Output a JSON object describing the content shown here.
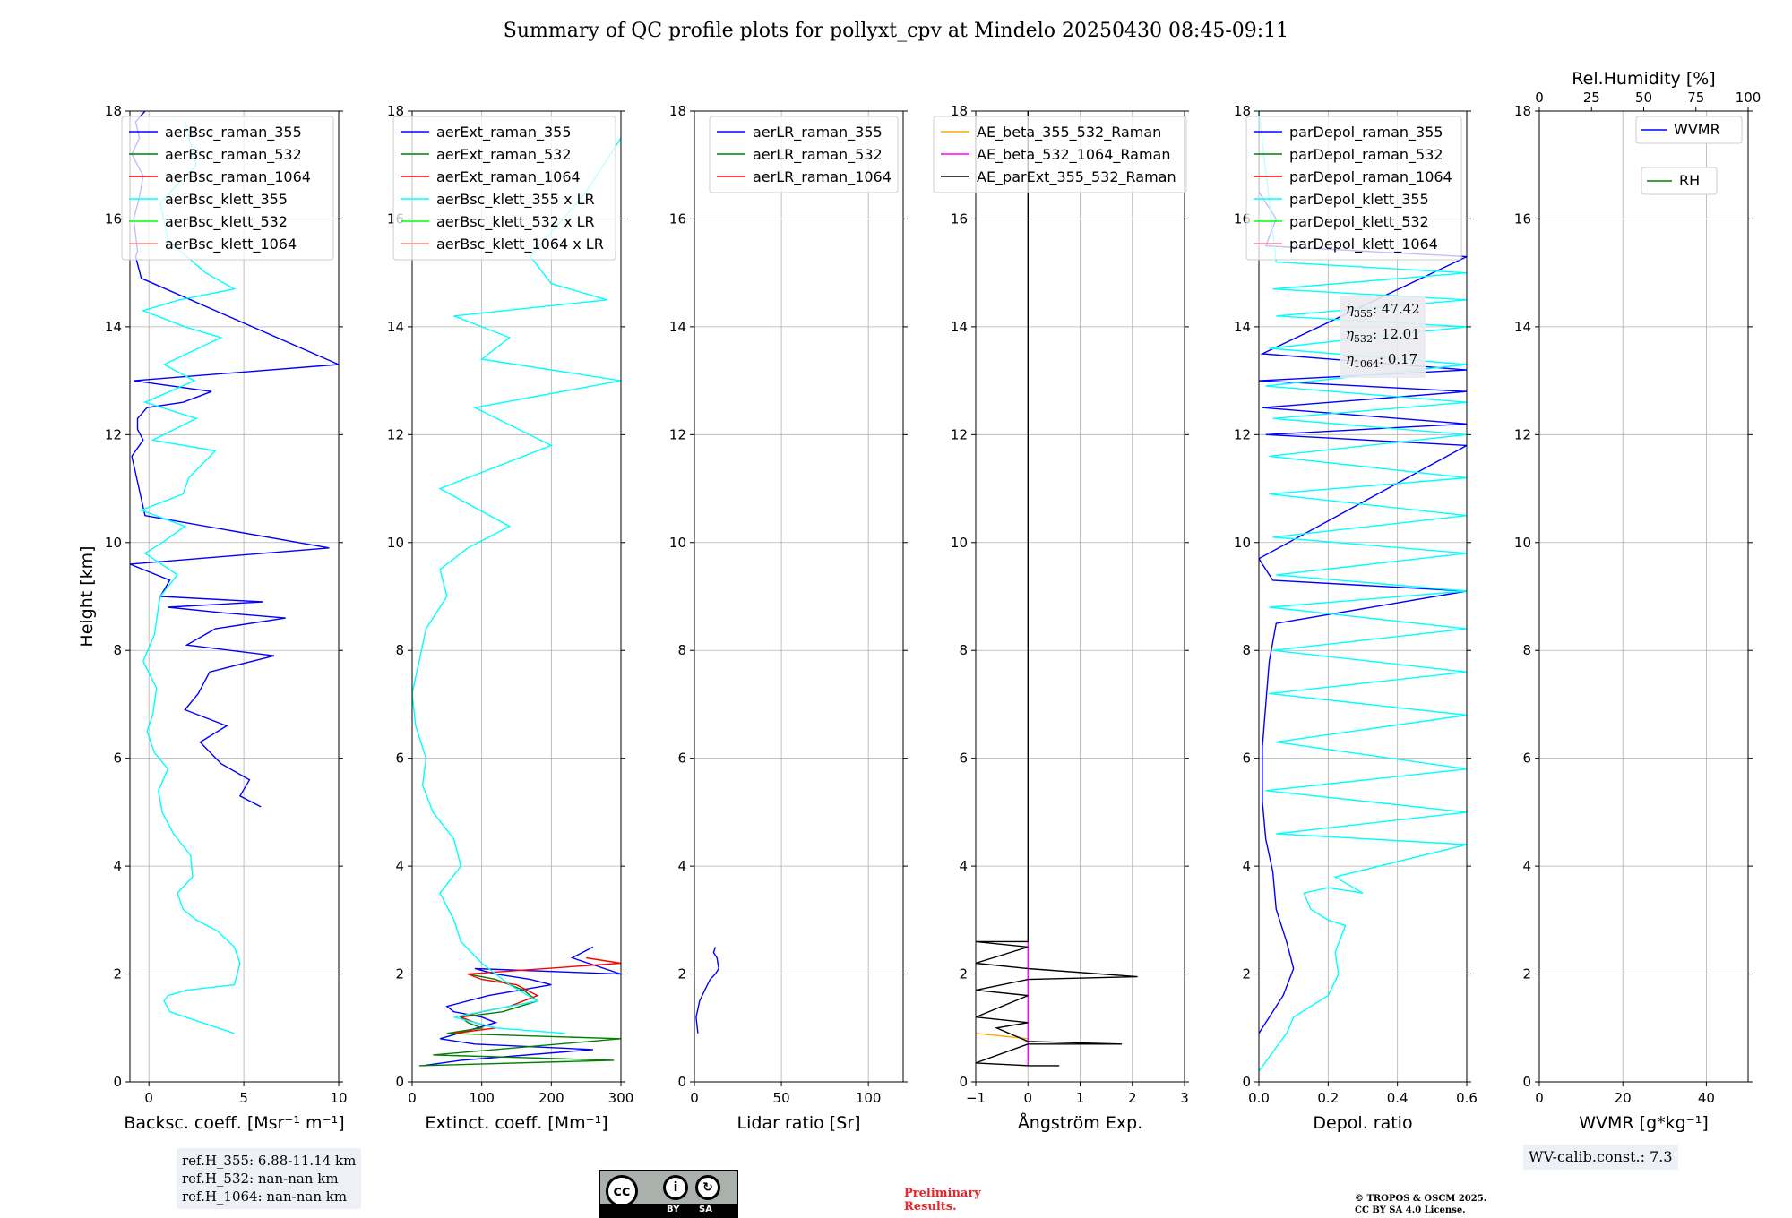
{
  "title": "Summary of QC profile plots for pollyxt_cpv at Mindelo 20250430 08:45-09:11",
  "info_left": [
    "ref.H_355: 6.88-11.14 km",
    "ref.H_532: nan-nan km",
    "ref.H_1064: nan-nan km"
  ],
  "eta_box": [
    "η355: 47.42",
    "η532: 12.01",
    "η1064: 0.17"
  ],
  "wv_calib": "WV-calib.const.: 7.3",
  "preliminary": "Preliminary\nResults.",
  "copyright": "© TROPOS & OSCM 2025.\nCC BY SA 4.0 License.",
  "license_badge": [
    "BY",
    "SA"
  ],
  "chart_data": [
    {
      "type": "line",
      "xlabel": "Backsc. coeff. [Msr⁻¹ m⁻¹]",
      "ylabel": "Height [km]",
      "xlim": [
        -1,
        10
      ],
      "ylim": [
        0,
        18
      ],
      "xticks": [
        "0",
        "5",
        "10"
      ],
      "yticks": [
        "0",
        "2",
        "4",
        "6",
        "8",
        "10",
        "12",
        "14",
        "16",
        "18"
      ],
      "grid": true,
      "legend": "top-right",
      "series": [
        {
          "name": "aerBsc_raman_355",
          "color": "#0000ff",
          "x": [
            5.9,
            4.8,
            5.3,
            3.8,
            2.7,
            4.1,
            1.9,
            2.6,
            3.2,
            6.6,
            2.0,
            3.5,
            7.2,
            3.8,
            1.0,
            6.0,
            0.6,
            1.1,
            -1.0,
            9.5,
            -0.2,
            -0.9,
            -0.3,
            -0.6,
            -0.6,
            -0.1,
            1.8,
            3.3,
            -0.8,
            10.0,
            -0.4,
            -0.7,
            -0.6,
            -0.8,
            -0.5,
            -0.3,
            -0.9,
            -0.5,
            -0.7,
            -0.2
          ],
          "y": [
            5.1,
            5.3,
            5.6,
            5.9,
            6.3,
            6.6,
            6.9,
            7.2,
            7.6,
            7.9,
            8.1,
            8.4,
            8.6,
            8.7,
            8.8,
            8.9,
            9.0,
            9.3,
            9.6,
            9.9,
            10.5,
            11.6,
            11.9,
            12.1,
            12.3,
            12.5,
            12.6,
            12.8,
            13.0,
            13.3,
            14.9,
            15.3,
            15.4,
            16.0,
            16.4,
            16.8,
            17.2,
            17.5,
            17.8,
            18.0
          ]
        },
        {
          "name": "aerBsc_raman_532",
          "color": "#008000",
          "x": [],
          "y": []
        },
        {
          "name": "aerBsc_raman_1064",
          "color": "#ff0000",
          "x": [],
          "y": []
        },
        {
          "name": "aerBsc_klett_355",
          "color": "#00ffff",
          "x": [
            4.5,
            2.8,
            1.1,
            0.8,
            1.0,
            2.0,
            4.5,
            4.8,
            4.5,
            3.6,
            2.5,
            1.8,
            1.5,
            2.3,
            2.2,
            1.3,
            0.7,
            0.5,
            1.0,
            0.3,
            -0.1,
            0.2,
            0.4,
            -0.3,
            0.3,
            0.5,
            0.6,
            1.5,
            -0.2,
            0.7,
            1.9,
            -0.4,
            1.8,
            2.1,
            3.5,
            0.2,
            2.5,
            -0.2,
            2.4,
            0.8,
            3.8,
            1.9,
            -0.3,
            1.6,
            4.5,
            3.0,
            1.0,
            0.6,
            2.5,
            1.9
          ],
          "y": [
            0.9,
            1.1,
            1.3,
            1.5,
            1.6,
            1.7,
            1.8,
            2.2,
            2.5,
            2.8,
            3.0,
            3.2,
            3.5,
            3.8,
            4.2,
            4.6,
            5.0,
            5.4,
            5.8,
            6.1,
            6.5,
            6.8,
            7.3,
            7.8,
            8.3,
            8.8,
            9.0,
            9.4,
            9.8,
            10.0,
            10.3,
            10.6,
            10.9,
            11.2,
            11.7,
            11.9,
            12.3,
            12.6,
            13.0,
            13.3,
            13.8,
            14.0,
            14.3,
            14.5,
            14.7,
            15.0,
            15.6,
            16.3,
            17.0,
            17.8
          ]
        },
        {
          "name": "aerBsc_klett_532",
          "color": "#00ff00",
          "x": [],
          "y": []
        },
        {
          "name": "aerBsc_klett_1064",
          "color": "#ff8080",
          "x": [],
          "y": []
        }
      ]
    },
    {
      "type": "line",
      "xlabel": "Extinct. coeff. [Mm⁻¹]",
      "ylabel": "",
      "xlim": [
        0,
        300
      ],
      "ylim": [
        0,
        18
      ],
      "xticks": [
        "0",
        "100",
        "200",
        "300"
      ],
      "yticks": [
        "0",
        "2",
        "4",
        "6",
        "8",
        "10",
        "12",
        "14",
        "16",
        "18"
      ],
      "grid": true,
      "legend": "top-right",
      "series": [
        {
          "name": "aerExt_raman_355",
          "color": "#0000ff",
          "x": [
            15,
            70,
            260,
            90,
            40,
            80,
            120,
            100,
            60,
            50,
            110,
            200,
            170,
            120,
            90,
            300,
            230,
            260
          ],
          "y": [
            0.3,
            0.4,
            0.6,
            0.7,
            0.8,
            0.95,
            1.1,
            1.2,
            1.3,
            1.4,
            1.6,
            1.8,
            1.9,
            2.0,
            2.1,
            2.0,
            2.3,
            2.5
          ]
        },
        {
          "name": "aerExt_raman_532",
          "color": "#008000",
          "x": [
            10,
            290,
            30,
            300,
            50,
            100,
            80,
            70,
            130,
            180,
            160,
            120,
            80
          ],
          "y": [
            0.3,
            0.4,
            0.5,
            0.8,
            0.9,
            1.0,
            1.1,
            1.2,
            1.3,
            1.5,
            1.7,
            1.9,
            2.0
          ]
        },
        {
          "name": "aerExt_raman_1064",
          "color": "#ff0000",
          "x": [
            60,
            120,
            90,
            70,
            100,
            140,
            180,
            150,
            100,
            80,
            300,
            250
          ],
          "y": [
            0.9,
            1.0,
            1.1,
            1.2,
            1.3,
            1.4,
            1.6,
            1.8,
            1.9,
            2.0,
            2.2,
            2.3
          ]
        },
        {
          "name": "aerBsc_klett_355 x LR",
          "color": "#00ffff",
          "x": [
            220,
            120,
            60,
            180,
            140,
            100,
            70,
            60,
            40,
            70,
            60,
            30,
            15,
            20,
            5,
            0,
            10,
            20,
            50,
            40,
            80,
            140,
            40,
            200,
            90,
            300,
            100,
            140,
            60,
            280,
            200,
            170,
            250,
            300
          ],
          "y": [
            0.9,
            1.0,
            1.2,
            1.5,
            1.8,
            2.2,
            2.6,
            3.0,
            3.5,
            4.0,
            4.5,
            5.0,
            5.5,
            6.0,
            6.6,
            7.2,
            7.8,
            8.4,
            9.0,
            9.5,
            9.9,
            10.3,
            11.0,
            11.8,
            12.5,
            13.0,
            13.4,
            13.8,
            14.2,
            14.5,
            14.8,
            15.3,
            16.5,
            17.5
          ]
        },
        {
          "name": "aerBsc_klett_532 x LR",
          "color": "#00ff00",
          "x": [],
          "y": []
        },
        {
          "name": "aerBsc_klett_1064 x LR",
          "color": "#ff8080",
          "x": [],
          "y": []
        }
      ]
    },
    {
      "type": "line",
      "xlabel": "Lidar ratio [Sr]",
      "ylabel": "",
      "xlim": [
        0,
        120
      ],
      "ylim": [
        0,
        18
      ],
      "xticks": [
        "0",
        "50",
        "100"
      ],
      "yticks": [
        "0",
        "2",
        "4",
        "6",
        "8",
        "10",
        "12",
        "14",
        "16",
        "18"
      ],
      "grid": true,
      "legend": "top-right",
      "series": [
        {
          "name": "aerLR_raman_355",
          "color": "#0000ff",
          "x": [
            2,
            1,
            3,
            6,
            9,
            12,
            14,
            13,
            11,
            12
          ],
          "y": [
            0.9,
            1.2,
            1.5,
            1.7,
            1.9,
            2.0,
            2.1,
            2.3,
            2.4,
            2.5
          ]
        },
        {
          "name": "aerLR_raman_532",
          "color": "#008000",
          "x": [],
          "y": []
        },
        {
          "name": "aerLR_raman_1064",
          "color": "#ff0000",
          "x": [],
          "y": []
        }
      ]
    },
    {
      "type": "line",
      "xlabel": "Ångström Exp.",
      "ylabel": "",
      "xlim": [
        -1,
        3
      ],
      "ylim": [
        0,
        18
      ],
      "xticks": [
        "−1",
        "0",
        "1",
        "2",
        "3"
      ],
      "yticks": [
        "0",
        "2",
        "4",
        "6",
        "8",
        "10",
        "12",
        "14",
        "16",
        "18"
      ],
      "grid": true,
      "legend": "top-right",
      "series": [
        {
          "name": "AE_beta_355_532_Raman",
          "color": "#ffa500",
          "x": [
            -1.0,
            0.0
          ],
          "y": [
            0.9,
            0.8
          ]
        },
        {
          "name": "AE_beta_532_1064_Raman",
          "color": "#ff00ff",
          "x": [
            0.0,
            0.0
          ],
          "y": [
            0.3,
            2.6
          ]
        },
        {
          "name": "AE_parExt_355_532_Raman",
          "color": "#000000",
          "x": [
            0.6,
            0.0,
            -1.0,
            0.0,
            1.8,
            0.0,
            -0.6,
            0.0,
            -1.0,
            0.0,
            -1.0,
            0.0,
            2.1,
            0.0,
            -1.0,
            0.0,
            -1.0,
            0.0,
            0.0
          ],
          "y": [
            0.3,
            0.3,
            0.35,
            0.7,
            0.7,
            0.75,
            1.0,
            1.1,
            1.2,
            1.6,
            1.7,
            1.9,
            1.95,
            2.1,
            2.2,
            2.5,
            2.6,
            2.6,
            18.0
          ]
        }
      ]
    },
    {
      "type": "line",
      "xlabel": "Depol. ratio",
      "ylabel": "",
      "xlim": [
        0,
        0.6
      ],
      "ylim": [
        0,
        18
      ],
      "xticks": [
        "0.0",
        "0.2",
        "0.4",
        "0.6"
      ],
      "yticks": [
        "0",
        "2",
        "4",
        "6",
        "8",
        "10",
        "12",
        "14",
        "16",
        "18"
      ],
      "grid": true,
      "legend": "top-right",
      "series": [
        {
          "name": "parDepol_raman_355",
          "color": "#0000ff",
          "x": [
            0.0,
            0.03,
            0.07,
            0.1,
            0.08,
            0.05,
            0.04,
            0.02,
            0.01,
            0.01,
            0.02,
            0.03,
            0.05,
            0.6,
            0.04,
            0.0,
            0.6,
            0.02,
            0.6,
            0.01,
            0.6,
            0.0,
            0.6,
            0.01,
            0.6,
            0.02,
            0.05,
            0.0,
            0.0
          ],
          "y": [
            0.9,
            1.2,
            1.6,
            2.1,
            2.6,
            3.2,
            3.9,
            4.5,
            5.2,
            6.2,
            7.0,
            7.8,
            8.5,
            9.1,
            9.3,
            9.7,
            11.8,
            12.0,
            12.2,
            12.5,
            12.8,
            13.0,
            13.2,
            13.5,
            15.3,
            15.5,
            16.0,
            16.5,
            18.0
          ]
        },
        {
          "name": "parDepol_raman_532",
          "color": "#008000",
          "x": [],
          "y": []
        },
        {
          "name": "parDepol_raman_1064",
          "color": "#ff0000",
          "x": [],
          "y": []
        },
        {
          "name": "parDepol_klett_355",
          "color": "#00ffff",
          "x": [
            0.0,
            0.08,
            0.1,
            0.2,
            0.23,
            0.22,
            0.25,
            0.2,
            0.15,
            0.13,
            0.2,
            0.3,
            0.22,
            0.6,
            0.05,
            0.6,
            0.02,
            0.6,
            0.05,
            0.6,
            0.03,
            0.6,
            0.04,
            0.6,
            0.03,
            0.6,
            0.05,
            0.6,
            0.04,
            0.6,
            0.03,
            0.6,
            0.03,
            0.6,
            0.04,
            0.6,
            0.02,
            0.6,
            0.03,
            0.6,
            0.05,
            0.6,
            0.04,
            0.6,
            0.05,
            0.0
          ],
          "y": [
            0.2,
            0.9,
            1.2,
            1.6,
            2.0,
            2.4,
            2.9,
            3.0,
            3.2,
            3.5,
            3.6,
            3.5,
            3.8,
            4.4,
            4.6,
            5.0,
            5.4,
            5.8,
            6.3,
            6.8,
            7.2,
            7.6,
            8.0,
            8.4,
            8.8,
            9.1,
            9.4,
            9.8,
            10.1,
            10.5,
            10.9,
            11.2,
            11.6,
            12.0,
            12.3,
            12.6,
            12.9,
            13.3,
            13.6,
            14.0,
            14.2,
            14.5,
            14.7,
            15.0,
            15.2,
            18.0
          ]
        },
        {
          "name": "parDepol_klett_532",
          "color": "#00ff00",
          "x": [],
          "y": []
        },
        {
          "name": "parDepol_klett_1064",
          "color": "#ff8080",
          "x": [],
          "y": []
        }
      ]
    },
    {
      "type": "line",
      "xlabel": "WVMR [g*kg⁻¹]",
      "xlabel_top": "Rel.Humidity [%]",
      "ylabel": "",
      "xlim": [
        0,
        50
      ],
      "xlim_top": [
        0,
        100
      ],
      "ylim": [
        0,
        18
      ],
      "xticks": [
        "0",
        "20",
        "40"
      ],
      "xticks_top": [
        "0",
        "25",
        "50",
        "75",
        "100"
      ],
      "yticks": [
        "0",
        "2",
        "4",
        "6",
        "8",
        "10",
        "12",
        "14",
        "16",
        "18"
      ],
      "grid": true,
      "legend": "top-right",
      "series": [
        {
          "name": "WVMR",
          "color": "#0000ff",
          "x": [],
          "y": []
        },
        {
          "name": "RH",
          "color": "#008000",
          "x": [],
          "y": []
        }
      ]
    }
  ]
}
